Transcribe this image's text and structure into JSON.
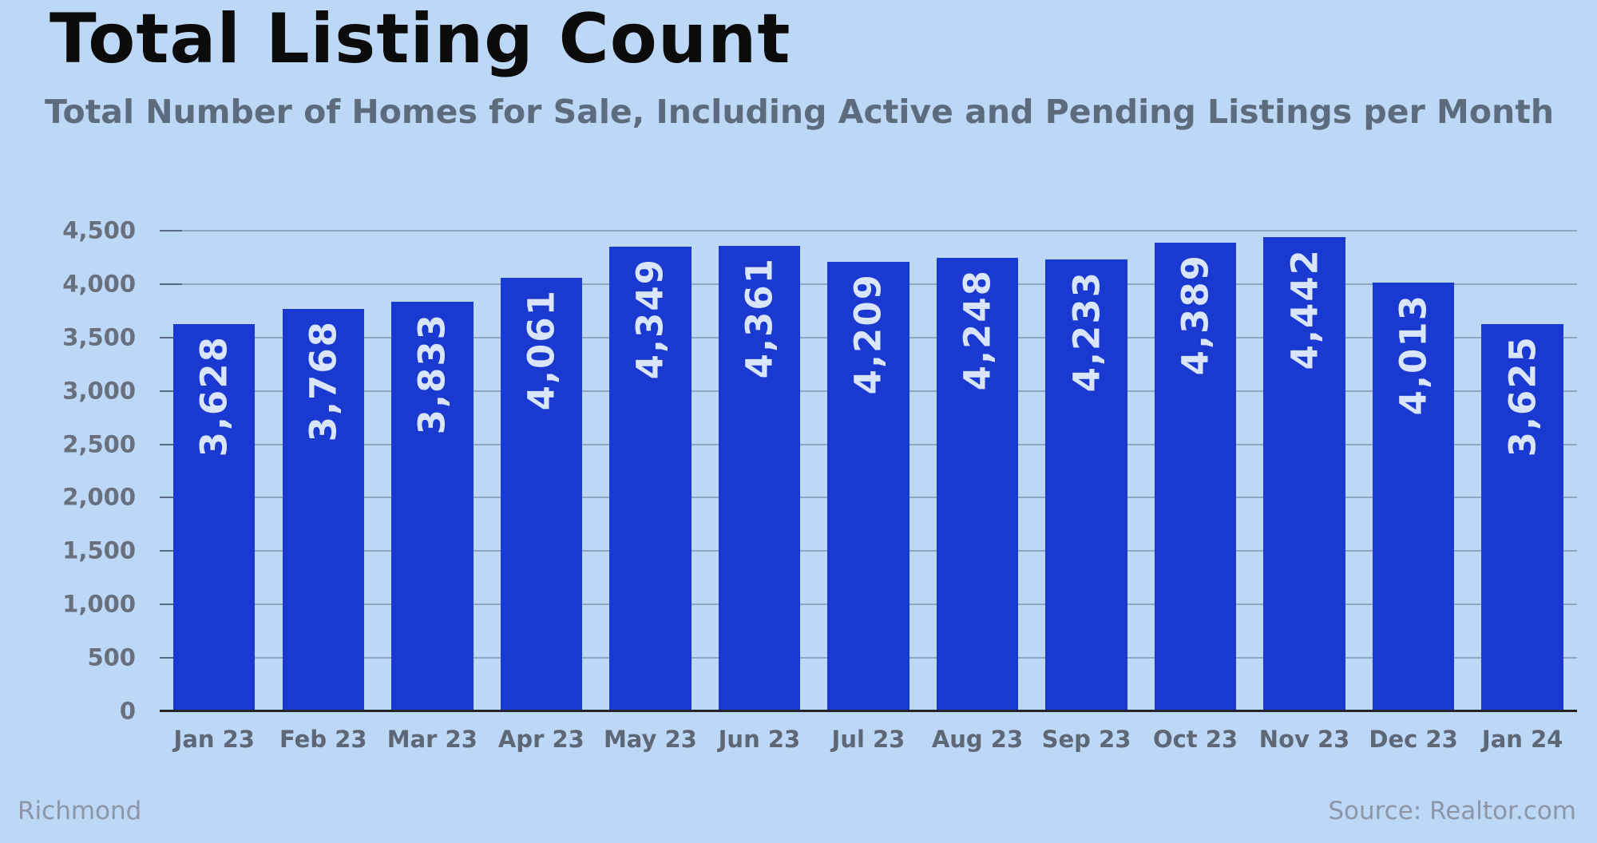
{
  "header": {
    "title": "Total Listing Count",
    "subtitle": "Total Number of Homes for Sale, Including Active and Pending Listings per Month"
  },
  "chart_data": {
    "type": "bar",
    "title": "Total Listing Count",
    "subtitle": "Total Number of Homes for Sale, Including Active and Pending Listings per Month",
    "categories": [
      "Jan 23",
      "Feb 23",
      "Mar 23",
      "Apr 23",
      "May 23",
      "Jun 23",
      "Jul 23",
      "Aug 23",
      "Sep 23",
      "Oct 23",
      "Nov 23",
      "Dec 23",
      "Jan 24"
    ],
    "values": [
      3628,
      3768,
      3833,
      4061,
      4349,
      4361,
      4209,
      4248,
      4233,
      4389,
      4442,
      4013,
      3625
    ],
    "value_labels": [
      "3,628",
      "3,768",
      "3,833",
      "4,061",
      "4,349",
      "4,361",
      "4,209",
      "4,248",
      "4,233",
      "4,389",
      "4,442",
      "4,013",
      "3,625"
    ],
    "xlabel": "",
    "ylabel": "",
    "ylim": [
      0,
      4500
    ],
    "ytick_step": 500,
    "ytick_labels": [
      "0",
      "500",
      "1,000",
      "1,500",
      "2,000",
      "2,500",
      "3,000",
      "3,500",
      "4,000",
      "4,500"
    ],
    "grid": true,
    "legend": false,
    "bar_label_rotation_deg": -90,
    "colors": {
      "background": "#bdd7f7",
      "bar": "#1a39d0",
      "bar_label": "#d8e5fa",
      "grid_line": "rgba(100,115,140,0.5)",
      "axis_line": "#232629"
    }
  },
  "footer": {
    "location": "Richmond",
    "source": "Source: Realtor.com"
  }
}
